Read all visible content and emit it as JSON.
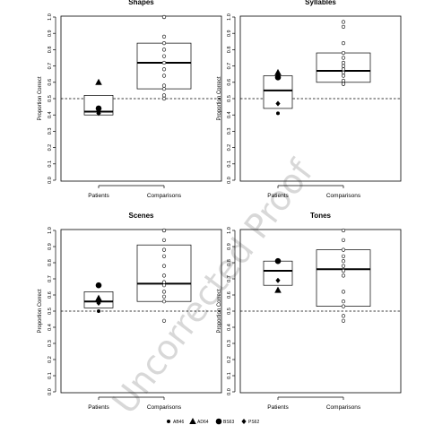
{
  "chart_data": [
    {
      "type": "box",
      "title": "Shapes",
      "ylabel": "Proportion Correct",
      "categories": [
        "Patients",
        "Comparisons"
      ],
      "ylim": [
        0,
        1
      ],
      "yticks": [
        "0.0",
        "0.1",
        "0.2",
        "0.3",
        "0.4",
        "0.5",
        "0.6",
        "0.7",
        "0.8",
        "0.9",
        "1.0"
      ],
      "reference_line": 0.5,
      "boxes": [
        {
          "category": "Patients",
          "q1": 0.4,
          "median": 0.42,
          "q3": 0.52
        },
        {
          "category": "Comparisons",
          "q1": 0.56,
          "median": 0.72,
          "q3": 0.84
        }
      ],
      "patients": [
        {
          "symbol": "triangle",
          "value": 0.6
        },
        {
          "symbol": "circle",
          "value": 0.44
        },
        {
          "symbol": "diamond",
          "value": 0.41
        },
        {
          "symbol": "dot",
          "value": 0.41
        }
      ],
      "comparisons": [
        1.0,
        1.0,
        0.88,
        0.84,
        0.8,
        0.76,
        0.72,
        0.68,
        0.64,
        0.58,
        0.56,
        0.52,
        0.5
      ]
    },
    {
      "type": "box",
      "title": "Syllables",
      "ylabel": "Proportion Correct",
      "categories": [
        "Patients",
        "Comparisons"
      ],
      "ylim": [
        0,
        1
      ],
      "yticks": [
        "0.0",
        "0.1",
        "0.2",
        "0.3",
        "0.4",
        "0.5",
        "0.6",
        "0.7",
        "0.8",
        "0.9",
        "1.0"
      ],
      "reference_line": 0.5,
      "boxes": [
        {
          "category": "Patients",
          "q1": 0.44,
          "median": 0.55,
          "q3": 0.64
        },
        {
          "category": "Comparisons",
          "q1": 0.6,
          "median": 0.67,
          "q3": 0.78
        }
      ],
      "patients": [
        {
          "symbol": "triangle",
          "value": 0.66
        },
        {
          "symbol": "circle",
          "value": 0.63
        },
        {
          "symbol": "diamond",
          "value": 0.47
        },
        {
          "symbol": "dot",
          "value": 0.41
        }
      ],
      "comparisons": [
        0.97,
        0.94,
        0.84,
        0.78,
        0.75,
        0.72,
        0.7,
        0.68,
        0.66,
        0.64,
        0.61,
        0.59,
        0.59
      ]
    },
    {
      "type": "box",
      "title": "Scenes",
      "ylabel": "Proportion Correct",
      "categories": [
        "Patients",
        "Comparisons"
      ],
      "ylim": [
        0,
        1
      ],
      "yticks": [
        "0.0",
        "0.1",
        "0.2",
        "0.3",
        "0.4",
        "0.5",
        "0.6",
        "0.7",
        "0.8",
        "0.9",
        "1.0"
      ],
      "reference_line": 0.5,
      "boxes": [
        {
          "category": "Patients",
          "q1": 0.52,
          "median": 0.56,
          "q3": 0.62
        },
        {
          "category": "Comparisons",
          "q1": 0.56,
          "median": 0.67,
          "q3": 0.91
        }
      ],
      "patients": [
        {
          "symbol": "circle",
          "value": 0.66
        },
        {
          "symbol": "triangle",
          "value": 0.58
        },
        {
          "symbol": "diamond",
          "value": 0.55
        },
        {
          "symbol": "dot",
          "value": 0.5
        }
      ],
      "comparisons": [
        1.0,
        1.0,
        0.94,
        0.88,
        0.84,
        0.78,
        0.72,
        0.68,
        0.66,
        0.62,
        0.59,
        0.56,
        0.44
      ]
    },
    {
      "type": "box",
      "title": "Tones",
      "ylabel": "Proportion Correct",
      "categories": [
        "Patients",
        "Comparisons"
      ],
      "ylim": [
        0,
        1
      ],
      "yticks": [
        "0.0",
        "0.1",
        "0.2",
        "0.3",
        "0.4",
        "0.5",
        "0.6",
        "0.7",
        "0.8",
        "0.9",
        "1.0"
      ],
      "reference_line": 0.5,
      "boxes": [
        {
          "category": "Patients",
          "q1": 0.66,
          "median": 0.75,
          "q3": 0.81
        },
        {
          "category": "Comparisons",
          "q1": 0.53,
          "median": 0.76,
          "q3": 0.88
        }
      ],
      "patients": [
        {
          "symbol": "circle",
          "value": 0.81
        },
        {
          "symbol": "dot",
          "value": 0.81
        },
        {
          "symbol": "diamond",
          "value": 0.69
        },
        {
          "symbol": "triangle",
          "value": 0.63
        }
      ],
      "comparisons": [
        1.0,
        0.94,
        0.88,
        0.84,
        0.81,
        0.78,
        0.75,
        0.72,
        0.62,
        0.56,
        0.53,
        0.47,
        0.44
      ]
    }
  ],
  "legend": {
    "entries": [
      {
        "symbol": "dot",
        "label": "AB46"
      },
      {
        "symbol": "triangle",
        "label": "AD64"
      },
      {
        "symbol": "circle",
        "label": "BS63"
      },
      {
        "symbol": "diamond",
        "label": "PS62"
      }
    ]
  },
  "watermark": {
    "text": "Uncorrected Proof"
  }
}
